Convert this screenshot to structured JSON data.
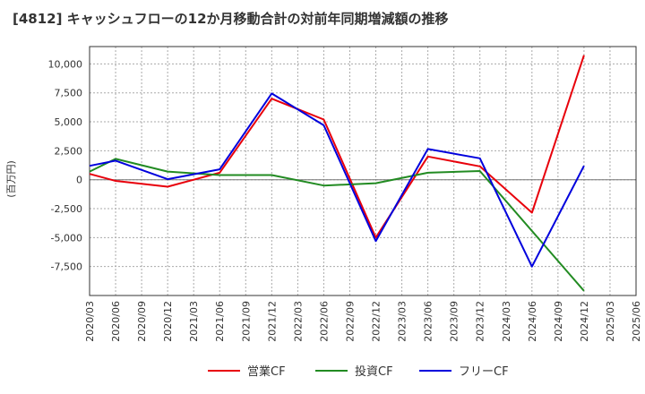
{
  "chart_data": {
    "type": "line",
    "title": "[4812]  キャッシュフローの12か月移動合計の対前年同期増減額の推移",
    "ylabel": "(百万円)",
    "xlabel": "",
    "categories": [
      "2020/03",
      "2020/06",
      "2020/09",
      "2020/12",
      "2021/03",
      "2021/06",
      "2021/09",
      "2021/12",
      "2022/03",
      "2022/06",
      "2022/09",
      "2022/12",
      "2023/03",
      "2023/06",
      "2023/09",
      "2023/12",
      "2024/03",
      "2024/06",
      "2024/09",
      "2024/12",
      "2025/03",
      "2025/06"
    ],
    "ylim": [
      -10000,
      11500
    ],
    "yticks": [
      10000,
      7500,
      5000,
      2500,
      0,
      -2500,
      -5000,
      -7500
    ],
    "ytick_labels": [
      "10,000",
      "7,500",
      "5,000",
      "2,500",
      "0",
      "-2,500",
      "-5,000",
      "-7,500"
    ],
    "grid": true,
    "legend_position": "bottom",
    "series": [
      {
        "name": "営業CF",
        "color": "#e8000b",
        "values": [
          500,
          -100,
          -350,
          -600,
          0,
          600,
          null,
          7000,
          null,
          5200,
          null,
          -5000,
          null,
          2000,
          null,
          1150,
          null,
          -2850,
          null,
          10750,
          null,
          null
        ]
      },
      {
        "name": "投資CF",
        "color": "#228b22",
        "values": [
          700,
          1800,
          null,
          700,
          null,
          400,
          null,
          400,
          null,
          -500,
          null,
          -300,
          null,
          600,
          null,
          750,
          null,
          null,
          null,
          -9600,
          null,
          null
        ]
      },
      {
        "name": "フリーCF",
        "color": "#0000dd",
        "values": [
          1200,
          1650,
          null,
          50,
          null,
          900,
          null,
          7450,
          null,
          4700,
          null,
          -5300,
          null,
          2650,
          null,
          1850,
          null,
          -7500,
          null,
          1200,
          null,
          null
        ]
      }
    ]
  }
}
